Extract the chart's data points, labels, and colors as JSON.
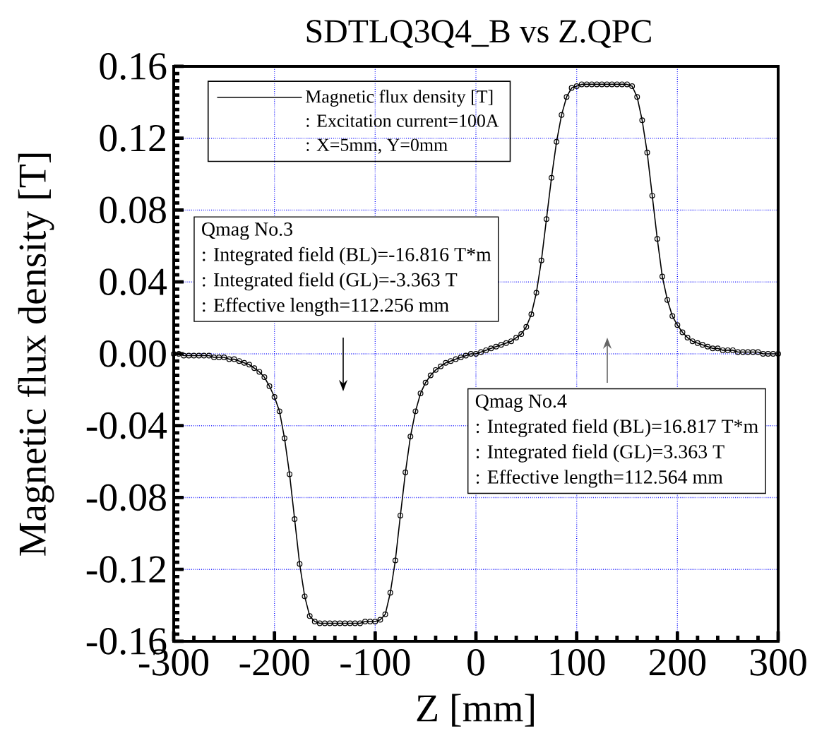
{
  "chart_data": {
    "type": "line",
    "title": "SDTLQ3Q4_B vs Z.QPC",
    "xlabel": "Z [mm]",
    "ylabel": "Magnetic flux density [T]",
    "x": [
      -300,
      -295,
      -290,
      -285,
      -280,
      -275,
      -270,
      -265,
      -260,
      -255,
      -250,
      -245,
      -240,
      -235,
      -230,
      -225,
      -220,
      -215,
      -210,
      -205,
      -200,
      -195,
      -190,
      -185,
      -180,
      -175,
      -170,
      -165,
      -160,
      -155,
      -150,
      -145,
      -140,
      -135,
      -130,
      -125,
      -120,
      -115,
      -110,
      -105,
      -100,
      -95,
      -90,
      -85,
      -80,
      -75,
      -70,
      -65,
      -60,
      -55,
      -50,
      -45,
      -40,
      -35,
      -30,
      -25,
      -20,
      -15,
      -10,
      -5,
      0,
      5,
      10,
      15,
      20,
      25,
      30,
      35,
      40,
      45,
      50,
      55,
      60,
      65,
      70,
      75,
      80,
      85,
      90,
      95,
      100,
      105,
      110,
      115,
      120,
      125,
      130,
      135,
      140,
      145,
      150,
      155,
      160,
      165,
      170,
      175,
      180,
      185,
      190,
      195,
      200,
      205,
      210,
      215,
      220,
      225,
      230,
      235,
      240,
      245,
      250,
      255,
      260,
      265,
      270,
      275,
      280,
      285,
      290,
      295,
      300
    ],
    "series": [
      {
        "name": "Magnetic flux density [T]",
        "color": "#000000",
        "values": [
          0.0,
          0.0,
          -0.001,
          -0.001,
          -0.001,
          -0.001,
          -0.001,
          -0.001,
          -0.002,
          -0.002,
          -0.002,
          -0.003,
          -0.003,
          -0.004,
          -0.005,
          -0.006,
          -0.008,
          -0.01,
          -0.013,
          -0.018,
          -0.024,
          -0.032,
          -0.047,
          -0.067,
          -0.092,
          -0.117,
          -0.135,
          -0.146,
          -0.149,
          -0.15,
          -0.15,
          -0.15,
          -0.15,
          -0.15,
          -0.15,
          -0.15,
          -0.15,
          -0.15,
          -0.149,
          -0.149,
          -0.149,
          -0.148,
          -0.145,
          -0.133,
          -0.115,
          -0.09,
          -0.066,
          -0.046,
          -0.032,
          -0.022,
          -0.016,
          -0.012,
          -0.009,
          -0.007,
          -0.005,
          -0.004,
          -0.003,
          -0.002,
          -0.001,
          0.0,
          0.0,
          0.001,
          0.002,
          0.003,
          0.004,
          0.005,
          0.006,
          0.007,
          0.009,
          0.011,
          0.015,
          0.022,
          0.034,
          0.052,
          0.075,
          0.098,
          0.118,
          0.133,
          0.143,
          0.148,
          0.149,
          0.15,
          0.15,
          0.15,
          0.15,
          0.15,
          0.15,
          0.15,
          0.15,
          0.15,
          0.15,
          0.149,
          0.143,
          0.13,
          0.112,
          0.088,
          0.064,
          0.043,
          0.03,
          0.021,
          0.016,
          0.012,
          0.009,
          0.007,
          0.006,
          0.005,
          0.004,
          0.003,
          0.003,
          0.002,
          0.002,
          0.002,
          0.001,
          0.001,
          0.001,
          0.001,
          0.001,
          0.0,
          0.0,
          0.0,
          0.0
        ]
      }
    ],
    "xlim": [
      -300,
      300
    ],
    "ylim": [
      -0.16,
      0.16
    ],
    "xticks": [
      -300,
      -200,
      -100,
      0,
      100,
      200,
      300
    ],
    "yticks": [
      -0.16,
      -0.12,
      -0.08,
      -0.04,
      {
        "value": 0,
        "label": "0.00"
      },
      0.04,
      0.08,
      0.12,
      0.16
    ],
    "grid": true,
    "legend": "top left",
    "marker": "circle",
    "line_style": "solid",
    "annotations": [
      ": Excitation current=100A",
      ": X=5mm, Y=0mm",
      "Qmag No.3",
      ": Integrated field (BL)=-16.816 T*m",
      ": Integrated field (GL)=-3.363 T",
      ": Effective length=112.256 mm",
      "Qmag No.4",
      ": Integrated field (BL)=16.817 T*m",
      ": Integrated field (GL)=3.363 T",
      ": Effective length=112.564 mm"
    ]
  }
}
